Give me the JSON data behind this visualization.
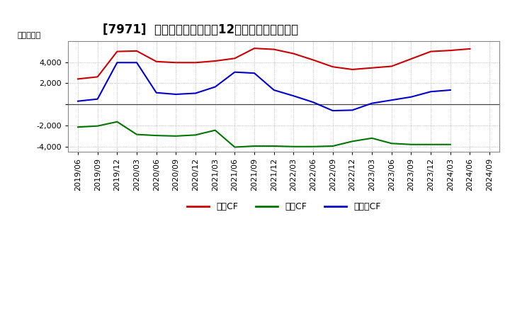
{
  "title": "[7971]  キャッシュフローの12か月移動合計の推移",
  "ylabel": "（百万円）",
  "background_color": "#ffffff",
  "plot_background": "#ffffff",
  "grid_color": "#aaaaaa",
  "x_labels": [
    "2019/06",
    "2019/09",
    "2019/12",
    "2020/03",
    "2020/06",
    "2020/09",
    "2020/12",
    "2021/03",
    "2021/06",
    "2021/09",
    "2021/12",
    "2022/03",
    "2022/06",
    "2022/09",
    "2022/12",
    "2023/03",
    "2023/06",
    "2023/09",
    "2023/12",
    "2024/03",
    "2024/06",
    "2024/09"
  ],
  "series": [
    {
      "name": "営業CF",
      "color": "#cc0000",
      "data": [
        2400,
        2600,
        5000,
        5050,
        4050,
        3950,
        3950,
        4100,
        4350,
        5300,
        5200,
        4800,
        4200,
        3550,
        3300,
        3450,
        3600,
        4300,
        5000,
        5100,
        5250,
        null
      ]
    },
    {
      "name": "投資CF",
      "color": "#007700",
      "data": [
        -2150,
        -2050,
        -1650,
        -2850,
        -2950,
        -3000,
        -2900,
        -2450,
        -4050,
        -3950,
        -3950,
        -4000,
        -4000,
        -3950,
        -3500,
        -3200,
        -3700,
        -3800,
        -3800,
        -3800,
        null,
        null
      ]
    },
    {
      "name": "フリーCF",
      "color": "#0000cc",
      "data": [
        300,
        500,
        3950,
        3950,
        1100,
        950,
        1050,
        1650,
        3050,
        2950,
        1350,
        800,
        200,
        -600,
        -550,
        100,
        400,
        700,
        1200,
        1350,
        null,
        null
      ]
    }
  ],
  "ylim": [
    -4500,
    6000
  ],
  "yticks": [
    -4000,
    -2000,
    0,
    2000,
    4000
  ],
  "legend_labels": [
    "営業CF",
    "投資CF",
    "フリーCF"
  ],
  "legend_colors": [
    "#cc0000",
    "#007700",
    "#0000cc"
  ],
  "title_fontsize": 12,
  "axis_fontsize": 8,
  "legend_fontsize": 9
}
